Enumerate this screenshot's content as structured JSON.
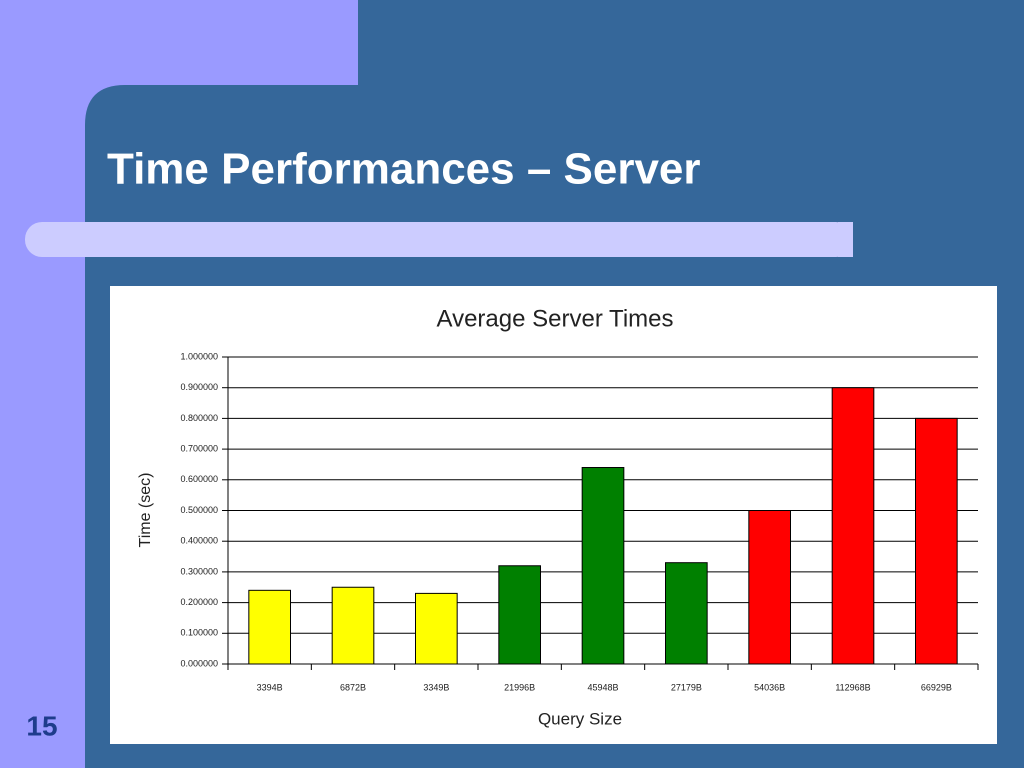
{
  "slide": {
    "title": "Time Performances – Server",
    "page_number": "15"
  },
  "chart_data": {
    "type": "bar",
    "title": "Average Server Times",
    "x_label": "Query Size",
    "y_label": "Time (sec)",
    "categories": [
      "3394B",
      "6872B",
      "3349B",
      "21996B",
      "45948B",
      "27179B",
      "54036B",
      "112968B",
      "66929B"
    ],
    "values": [
      0.24,
      0.25,
      0.23,
      0.32,
      0.64,
      0.33,
      0.5,
      0.9,
      0.8
    ],
    "colors": [
      "#ffff00",
      "#ffff00",
      "#ffff00",
      "#008000",
      "#008000",
      "#008000",
      "#ff0000",
      "#ff0000",
      "#ff0000"
    ],
    "ylim": [
      0,
      1
    ],
    "yticks": [
      {
        "value": 0,
        "label": "0.000000"
      },
      {
        "value": 0.1,
        "label": "0.100000"
      },
      {
        "value": 0.2,
        "label": "0.200000"
      },
      {
        "value": 0.3,
        "label": "0.300000"
      },
      {
        "value": 0.4,
        "label": "0.400000"
      },
      {
        "value": 0.5,
        "label": "0.500000"
      },
      {
        "value": 0.6,
        "label": "0.600000"
      },
      {
        "value": 0.7,
        "label": "0.700000"
      },
      {
        "value": 0.8,
        "label": "0.800000"
      },
      {
        "value": 0.9,
        "label": "0.900000"
      },
      {
        "value": 1,
        "label": "1.000000"
      }
    ],
    "grid": true
  }
}
